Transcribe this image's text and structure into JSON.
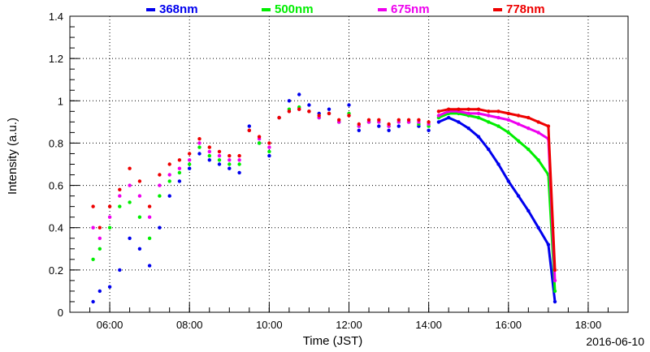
{
  "chart_data": {
    "type": "scatter",
    "xlabel": "Time (JST)",
    "ylabel": "Intensity (a.u.)",
    "date": "2016-06-10",
    "xlim": [
      "05:00",
      "19:00"
    ],
    "ylim": [
      0,
      1.4
    ],
    "grid": true,
    "legend_position": "top",
    "x_tick_labels": [
      "06:00",
      "08:00",
      "10:00",
      "12:00",
      "14:00",
      "16:00",
      "18:00"
    ],
    "y_tick_labels": [
      "0",
      "0.2",
      "0.4",
      "0.6",
      "0.8",
      "1",
      "1.2",
      "1.4"
    ],
    "note": "Scattered measurements from ~05:35 to ~14:15, smooth decay curves from ~14:15 to ~17:10.",
    "series": [
      {
        "name": "368nm",
        "color": "#0000ee",
        "x": [
          "05:35",
          "05:45",
          "06:00",
          "06:15",
          "06:30",
          "06:45",
          "07:00",
          "07:15",
          "07:30",
          "07:45",
          "08:00",
          "08:15",
          "08:30",
          "08:45",
          "09:00",
          "09:15",
          "09:30",
          "09:45",
          "10:00",
          "10:15",
          "10:30",
          "10:45",
          "11:00",
          "11:15",
          "11:30",
          "11:45",
          "12:00",
          "12:15",
          "12:30",
          "12:45",
          "13:00",
          "13:15",
          "13:30",
          "13:45",
          "14:00",
          "14:15",
          "14:30",
          "14:45",
          "15:00",
          "15:15",
          "15:30",
          "15:45",
          "16:00",
          "16:15",
          "16:30",
          "16:45",
          "17:00",
          "17:10"
        ],
        "y": [
          0.05,
          0.1,
          0.12,
          0.2,
          0.35,
          0.3,
          0.22,
          0.4,
          0.55,
          0.62,
          0.68,
          0.75,
          0.72,
          0.7,
          0.68,
          0.66,
          0.88,
          0.8,
          0.74,
          0.92,
          1.0,
          1.03,
          0.98,
          0.94,
          0.96,
          0.9,
          0.98,
          0.86,
          0.9,
          0.88,
          0.86,
          0.88,
          0.9,
          0.88,
          0.86,
          0.9,
          0.92,
          0.9,
          0.87,
          0.83,
          0.77,
          0.7,
          0.62,
          0.55,
          0.48,
          0.4,
          0.32,
          0.05
        ]
      },
      {
        "name": "500nm",
        "color": "#00ee00",
        "x": [
          "05:35",
          "05:45",
          "06:00",
          "06:15",
          "06:30",
          "06:45",
          "07:00",
          "07:15",
          "07:30",
          "07:45",
          "08:00",
          "08:15",
          "08:30",
          "08:45",
          "09:00",
          "09:15",
          "09:30",
          "09:45",
          "10:00",
          "10:15",
          "10:30",
          "10:45",
          "11:00",
          "11:15",
          "11:30",
          "11:45",
          "12:00",
          "12:15",
          "12:30",
          "12:45",
          "13:00",
          "13:15",
          "13:30",
          "13:45",
          "14:00",
          "14:15",
          "14:30",
          "14:45",
          "15:00",
          "15:15",
          "15:30",
          "15:45",
          "16:00",
          "16:15",
          "16:30",
          "16:45",
          "17:00",
          "17:10"
        ],
        "y": [
          0.25,
          0.3,
          0.4,
          0.5,
          0.52,
          0.45,
          0.35,
          0.55,
          0.62,
          0.66,
          0.7,
          0.78,
          0.74,
          0.72,
          0.7,
          0.7,
          0.86,
          0.8,
          0.76,
          0.92,
          0.96,
          0.97,
          0.95,
          0.92,
          0.94,
          0.9,
          0.94,
          0.88,
          0.9,
          0.9,
          0.88,
          0.9,
          0.9,
          0.89,
          0.88,
          0.92,
          0.94,
          0.94,
          0.93,
          0.92,
          0.9,
          0.88,
          0.85,
          0.81,
          0.77,
          0.72,
          0.65,
          0.1
        ]
      },
      {
        "name": "675nm",
        "color": "#ee00ee",
        "x": [
          "05:35",
          "05:45",
          "06:00",
          "06:15",
          "06:30",
          "06:45",
          "07:00",
          "07:15",
          "07:30",
          "07:45",
          "08:00",
          "08:15",
          "08:30",
          "08:45",
          "09:00",
          "09:15",
          "09:30",
          "09:45",
          "10:00",
          "10:15",
          "10:30",
          "10:45",
          "11:00",
          "11:15",
          "11:30",
          "11:45",
          "12:00",
          "12:15",
          "12:30",
          "12:45",
          "13:00",
          "13:15",
          "13:30",
          "13:45",
          "14:00",
          "14:15",
          "14:30",
          "14:45",
          "15:00",
          "15:15",
          "15:30",
          "15:45",
          "16:00",
          "16:15",
          "16:30",
          "16:45",
          "17:00",
          "17:10"
        ],
        "y": [
          0.4,
          0.35,
          0.45,
          0.55,
          0.6,
          0.55,
          0.45,
          0.6,
          0.65,
          0.68,
          0.72,
          0.8,
          0.76,
          0.74,
          0.72,
          0.72,
          0.86,
          0.82,
          0.78,
          0.92,
          0.95,
          0.96,
          0.95,
          0.92,
          0.94,
          0.9,
          0.93,
          0.88,
          0.9,
          0.9,
          0.88,
          0.9,
          0.9,
          0.9,
          0.89,
          0.93,
          0.95,
          0.95,
          0.94,
          0.94,
          0.93,
          0.92,
          0.91,
          0.89,
          0.87,
          0.85,
          0.82,
          0.15
        ]
      },
      {
        "name": "778nm",
        "color": "#ee0000",
        "x": [
          "05:35",
          "05:45",
          "06:00",
          "06:15",
          "06:30",
          "06:45",
          "07:00",
          "07:15",
          "07:30",
          "07:45",
          "08:00",
          "08:15",
          "08:30",
          "08:45",
          "09:00",
          "09:15",
          "09:30",
          "09:45",
          "10:00",
          "10:15",
          "10:30",
          "10:45",
          "11:00",
          "11:15",
          "11:30",
          "11:45",
          "12:00",
          "12:15",
          "12:30",
          "12:45",
          "13:00",
          "13:15",
          "13:30",
          "13:45",
          "14:00",
          "14:15",
          "14:30",
          "14:45",
          "15:00",
          "15:15",
          "15:30",
          "15:45",
          "16:00",
          "16:15",
          "16:30",
          "16:45",
          "17:00",
          "17:10"
        ],
        "y": [
          0.5,
          0.4,
          0.5,
          0.58,
          0.68,
          0.62,
          0.5,
          0.65,
          0.7,
          0.72,
          0.75,
          0.82,
          0.78,
          0.76,
          0.74,
          0.74,
          0.86,
          0.83,
          0.8,
          0.92,
          0.95,
          0.96,
          0.95,
          0.93,
          0.94,
          0.91,
          0.93,
          0.89,
          0.91,
          0.91,
          0.89,
          0.91,
          0.91,
          0.91,
          0.9,
          0.95,
          0.96,
          0.96,
          0.96,
          0.96,
          0.95,
          0.95,
          0.94,
          0.93,
          0.92,
          0.9,
          0.88,
          0.2
        ]
      }
    ]
  }
}
